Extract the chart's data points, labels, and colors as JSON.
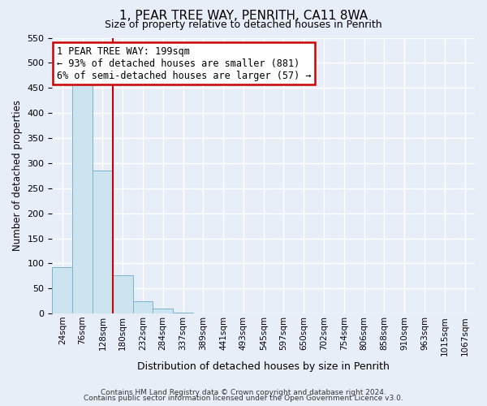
{
  "title": "1, PEAR TREE WAY, PENRITH, CA11 8WA",
  "subtitle": "Size of property relative to detached houses in Penrith",
  "xlabel": "Distribution of detached houses by size in Penrith",
  "ylabel": "Number of detached properties",
  "footer_line1": "Contains HM Land Registry data © Crown copyright and database right 2024.",
  "footer_line2": "Contains public sector information licensed under the Open Government Licence v3.0.",
  "bin_labels": [
    "24sqm",
    "76sqm",
    "128sqm",
    "180sqm",
    "232sqm",
    "284sqm",
    "337sqm",
    "389sqm",
    "441sqm",
    "493sqm",
    "545sqm",
    "597sqm",
    "650sqm",
    "702sqm",
    "754sqm",
    "806sqm",
    "858sqm",
    "910sqm",
    "963sqm",
    "1015sqm",
    "1067sqm"
  ],
  "bar_values": [
    93,
    460,
    285,
    77,
    25,
    10,
    2,
    0,
    0,
    0,
    0,
    1,
    0,
    0,
    0,
    0,
    0,
    0,
    0,
    1,
    0
  ],
  "bar_color": "#cce4f0",
  "bar_edge_color": "#7ab3cc",
  "plot_bg_color": "#e8eef8",
  "fig_bg_color": "#e8eef8",
  "grid_color": "#ffffff",
  "vline_color": "#cc0000",
  "vline_x_index": 3,
  "annotation_title": "1 PEAR TREE WAY: 199sqm",
  "annotation_line2": "← 93% of detached houses are smaller (881)",
  "annotation_line3": "6% of semi-detached houses are larger (57) →",
  "annotation_box_color": "#ffffff",
  "annotation_border_color": "#cc0000",
  "ylim": [
    0,
    550
  ],
  "yticks": [
    0,
    50,
    100,
    150,
    200,
    250,
    300,
    350,
    400,
    450,
    500,
    550
  ]
}
